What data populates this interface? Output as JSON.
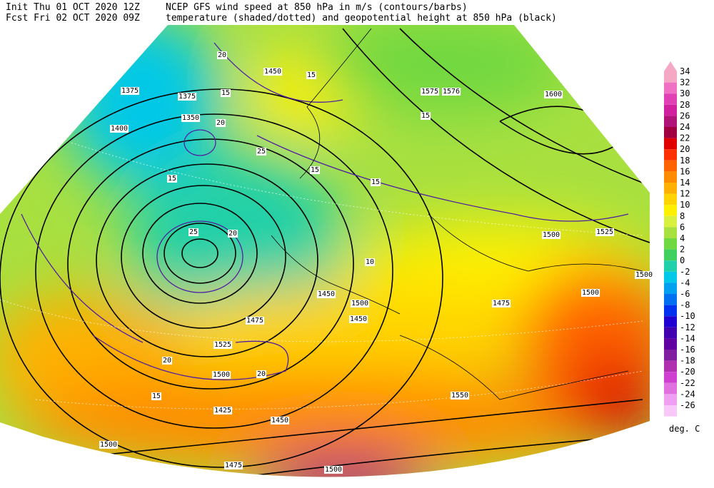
{
  "header": {
    "init": "Init  Thu 01 OCT 2020 12Z",
    "fcst": "Fcst Fri 02 OCT 2020 09Z",
    "line1": "NCEP GFS wind speed at 850 hPa in m/s (contours/barbs)",
    "line2": "temperature (shaded/dotted) and geopotential height at 850 hPa (black)"
  },
  "colorbar": {
    "unit": "deg. C",
    "ticks": [
      34,
      32,
      30,
      28,
      26,
      24,
      22,
      20,
      18,
      16,
      14,
      12,
      10,
      8,
      6,
      4,
      2,
      0,
      -2,
      -4,
      -6,
      -8,
      -10,
      -12,
      -14,
      -16,
      -18,
      -20,
      -22,
      -24,
      -26
    ],
    "colors": [
      "#f4a8c4",
      "#f070c4",
      "#e040b4",
      "#d020a0",
      "#b01478",
      "#a00040",
      "#e00000",
      "#ff3000",
      "#ff6400",
      "#ff8c00",
      "#ffb000",
      "#ffd400",
      "#fff000",
      "#d8f040",
      "#a8e040",
      "#70d840",
      "#40d060",
      "#20d0a8",
      "#00c8e8",
      "#00a0f0",
      "#0070f0",
      "#0030f0",
      "#2000d0",
      "#4000b0",
      "#6000a0",
      "#8020a0",
      "#b030b0",
      "#d040d0",
      "#e070e0",
      "#f0a0f0",
      "#f8c8f8"
    ]
  },
  "map_labels": [
    "1375",
    "1375",
    "1350",
    "1400",
    "1450",
    "1575",
    "1576",
    "1600",
    "15",
    "20",
    "15",
    "20",
    "25",
    "20",
    "15",
    "15",
    "1500",
    "1525",
    "1500",
    "1500",
    "1450",
    "1475",
    "1450",
    "1500",
    "1475",
    "1525",
    "1500",
    "20",
    "25",
    "20",
    "15",
    "1425",
    "1450",
    "1500",
    "1475",
    "1500",
    "1550",
    "15",
    "10",
    "15"
  ]
}
